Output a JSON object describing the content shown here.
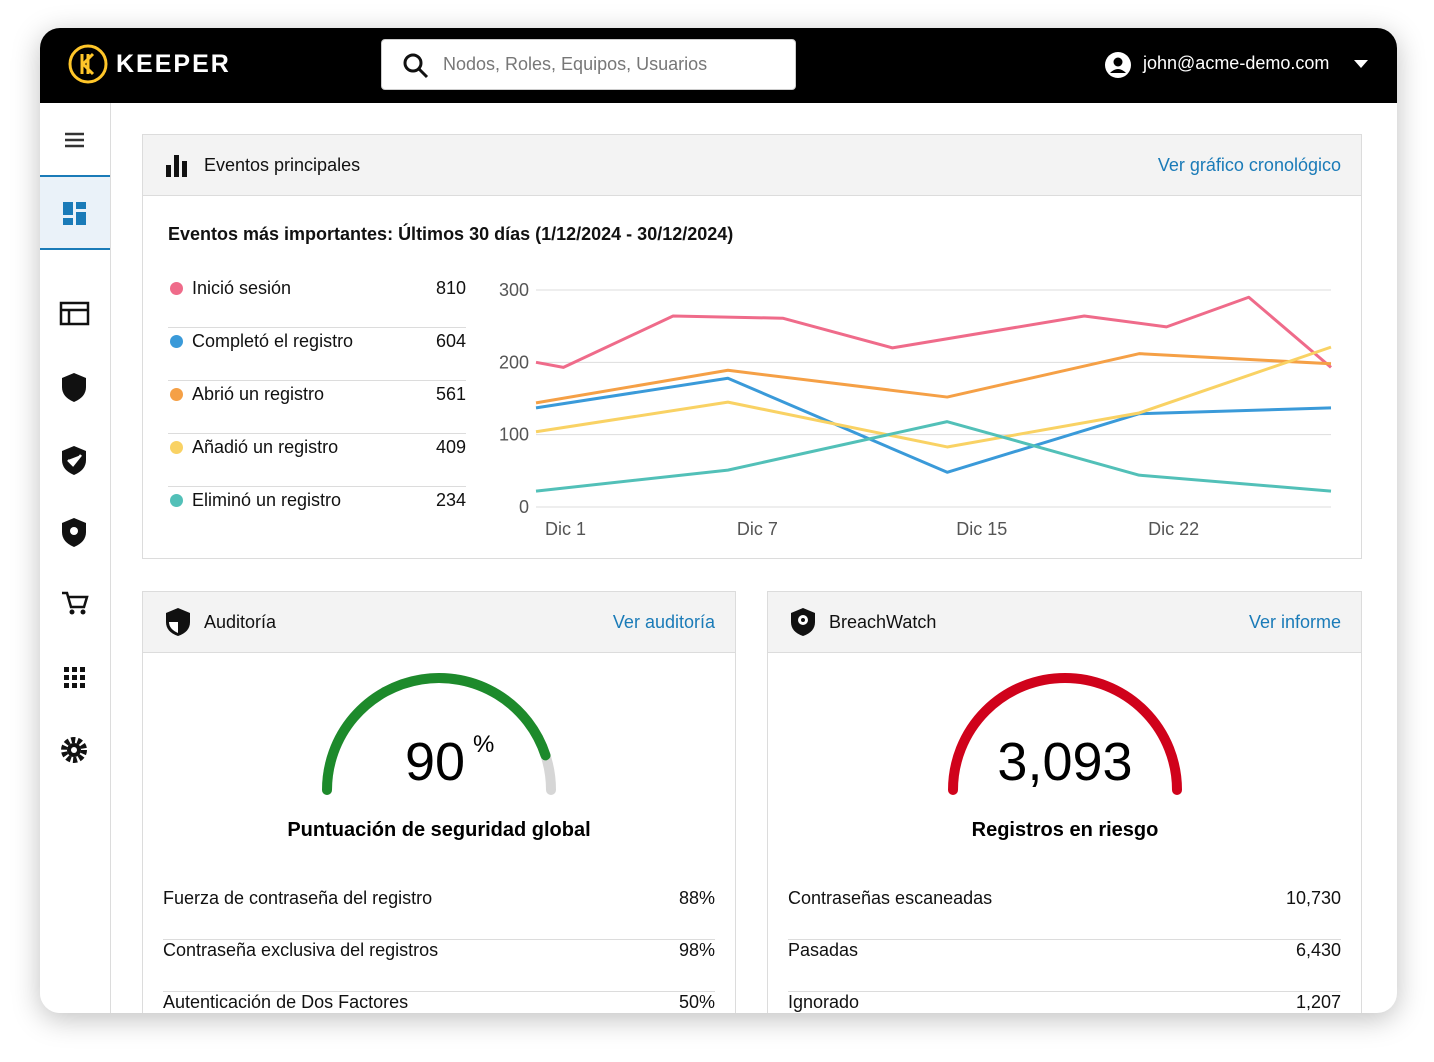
{
  "header": {
    "brand": "KEEPER",
    "search_placeholder": "Nodos, Roles, Equipos, Usuarios",
    "user": "john@acme-demo.com"
  },
  "events": {
    "title": "Eventos principales",
    "link": "Ver gráfico cronológico",
    "subtitle": "Eventos más importantes: Últimos 30 días (1/12/2024 - 30/12/2024)"
  },
  "chart_data": {
    "type": "line",
    "xlim": [
      1,
      30
    ],
    "xticks": [
      {
        "value": 1,
        "label": "Dic 1"
      },
      {
        "value": 8,
        "label": "Dic 7"
      },
      {
        "value": 16,
        "label": "Dic 15"
      },
      {
        "value": 23,
        "label": "Dic 22"
      }
    ],
    "ylim": [
      0,
      300
    ],
    "yticks": [
      0,
      100,
      200,
      300
    ],
    "grid": true,
    "series": [
      {
        "name": "Inició sesión",
        "total": 810,
        "color": "#ef6b8a",
        "x": [
          1,
          2,
          6,
          10,
          14,
          21,
          24,
          27,
          30
        ],
        "values": [
          200,
          193,
          264,
          261,
          220,
          264,
          249,
          290,
          193
        ]
      },
      {
        "name": "Completó el registro",
        "total": 604,
        "color": "#3a9ad9",
        "x": [
          1,
          8,
          16,
          23,
          30
        ],
        "values": [
          137,
          178,
          48,
          129,
          137
        ]
      },
      {
        "name": "Abrió un registro",
        "total": 561,
        "color": "#f5a046",
        "x": [
          1,
          8,
          16,
          23,
          30
        ],
        "values": [
          144,
          189,
          152,
          212,
          198
        ]
      },
      {
        "name": "Añadió un registro",
        "total": 409,
        "color": "#f9d264",
        "x": [
          1,
          8,
          16,
          23,
          30
        ],
        "values": [
          104,
          145,
          83,
          130,
          221
        ]
      },
      {
        "name": "Eliminó un registro",
        "total": 234,
        "color": "#52c0b8",
        "x": [
          1,
          8,
          16,
          23,
          30
        ],
        "values": [
          22,
          51,
          118,
          44,
          22
        ]
      }
    ]
  },
  "audit": {
    "title": "Auditoría",
    "link": "Ver auditoría",
    "score": 90,
    "unit": "%",
    "label": "Puntuación de seguridad global",
    "rows": [
      [
        "Fuerza de contraseña del registro",
        "88%"
      ],
      [
        "Contraseña exclusiva del registros",
        "98%"
      ],
      [
        "Autenticación de Dos Factores",
        "50%"
      ]
    ]
  },
  "breachwatch": {
    "title": "BreachWatch",
    "link": "Ver informe",
    "value": 3093,
    "value_label": "3,093",
    "label": "Registros en riesgo",
    "rows": [
      [
        "Contraseñas escaneadas",
        "10,730"
      ],
      [
        "Pasadas",
        "6,430"
      ],
      [
        "Ignorado",
        "1,207"
      ]
    ]
  }
}
